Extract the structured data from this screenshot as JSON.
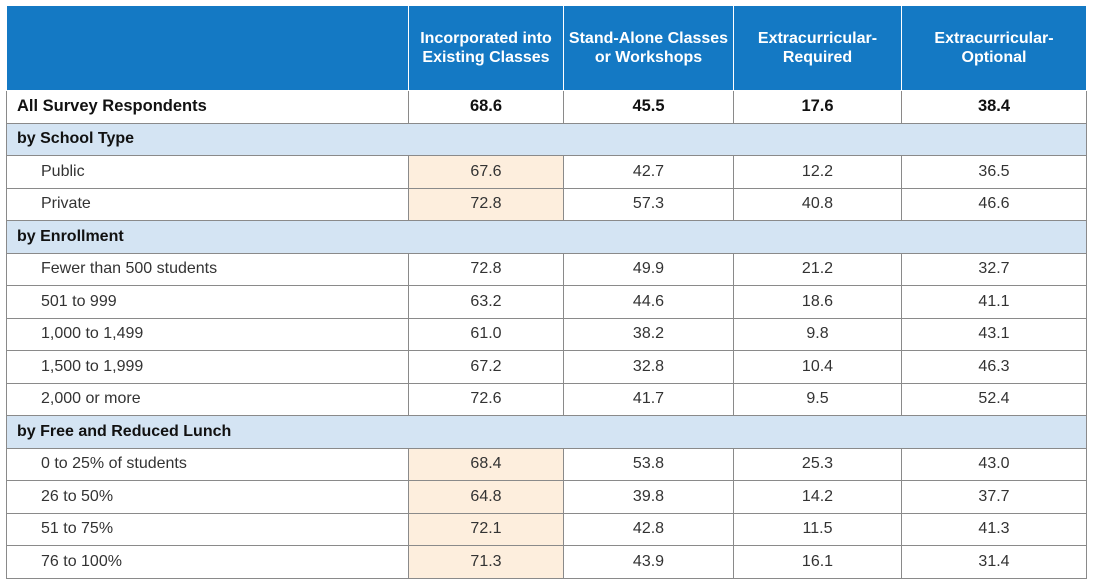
{
  "headers": [
    "",
    "Incorporated into Existing Classes",
    "Stand-Alone Classes or Workshops",
    "Extracurricular- Required",
    "Extracurricular- Optional"
  ],
  "highlight_color": "#fdeedd",
  "header_color": "#1479c4",
  "section_color": "#d4e4f3",
  "rows": [
    {
      "kind": "total",
      "label": "All Survey Respondents",
      "values": [
        "68.6",
        "45.5",
        "17.6",
        "38.4"
      ],
      "highlight": false
    },
    {
      "kind": "section",
      "label": "by School Type"
    },
    {
      "kind": "data",
      "label": "Public",
      "values": [
        "67.6",
        "42.7",
        "12.2",
        "36.5"
      ],
      "highlight": true
    },
    {
      "kind": "data",
      "label": "Private",
      "values": [
        "72.8",
        "57.3",
        "40.8",
        "46.6"
      ],
      "highlight": true
    },
    {
      "kind": "section",
      "label": "by Enrollment"
    },
    {
      "kind": "data",
      "label": "Fewer than 500 students",
      "values": [
        "72.8",
        "49.9",
        "21.2",
        "32.7"
      ],
      "highlight": false
    },
    {
      "kind": "data",
      "label": "501 to 999",
      "values": [
        "63.2",
        "44.6",
        "18.6",
        "41.1"
      ],
      "highlight": false
    },
    {
      "kind": "data",
      "label": "1,000 to 1,499",
      "values": [
        "61.0",
        "38.2",
        "9.8",
        "43.1"
      ],
      "highlight": false
    },
    {
      "kind": "data",
      "label": "1,500 to 1,999",
      "values": [
        "67.2",
        "32.8",
        "10.4",
        "46.3"
      ],
      "highlight": false
    },
    {
      "kind": "data",
      "label": "2,000 or more",
      "values": [
        "72.6",
        "41.7",
        "9.5",
        "52.4"
      ],
      "highlight": false
    },
    {
      "kind": "section",
      "label": "by Free and Reduced Lunch"
    },
    {
      "kind": "data",
      "label": "0 to 25% of students",
      "values": [
        "68.4",
        "53.8",
        "25.3",
        "43.0"
      ],
      "highlight": true
    },
    {
      "kind": "data",
      "label": "26 to 50%",
      "values": [
        "64.8",
        "39.8",
        "14.2",
        "37.7"
      ],
      "highlight": true
    },
    {
      "kind": "data",
      "label": "51 to 75%",
      "values": [
        "72.1",
        "42.8",
        "11.5",
        "41.3"
      ],
      "highlight": true
    },
    {
      "kind": "data",
      "label": "76 to 100%",
      "values": [
        "71.3",
        "43.9",
        "16.1",
        "31.4"
      ],
      "highlight": true
    }
  ]
}
